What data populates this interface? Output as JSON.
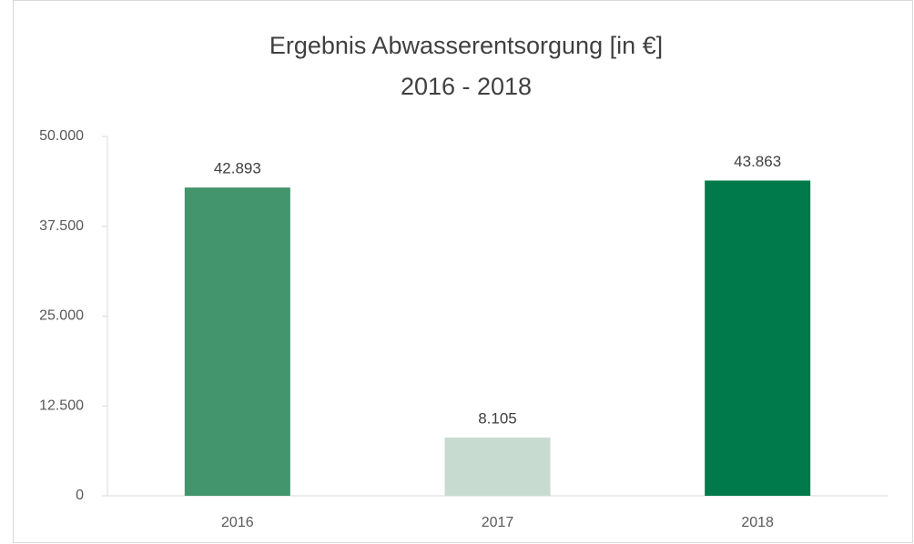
{
  "chart_data": {
    "type": "bar",
    "title": "Ergebnis Abwasserentsorgung [in €]",
    "subtitle": "2016 - 2018",
    "categories": [
      "2016",
      "2017",
      "2018"
    ],
    "values": [
      42893,
      8105,
      43863
    ],
    "value_labels": [
      "42.893",
      "8.105",
      "43.863"
    ],
    "colors": [
      "#43956e",
      "#c8dbd0",
      "#007a4a"
    ],
    "ylim": [
      0,
      50000
    ],
    "yticks": [
      0,
      {
        "value": 12500,
        "label": "12.500"
      },
      {
        "value": 25000,
        "label": "25.000"
      },
      {
        "value": 37500,
        "label": "37.500"
      },
      {
        "value": 50000,
        "label": "50.000"
      }
    ],
    "grid": false
  }
}
